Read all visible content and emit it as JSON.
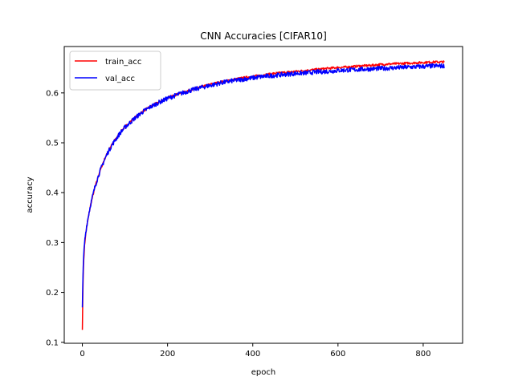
{
  "chart_data": {
    "type": "line",
    "title": "CNN Accuracies [CIFAR10]",
    "xlabel": "epoch",
    "ylabel": "accuracy",
    "xlim": [
      -42.5,
      892.5
    ],
    "ylim": [
      0.098,
      0.693
    ],
    "xticks": [
      0,
      200,
      400,
      600,
      800
    ],
    "yticks": [
      0.1,
      0.2,
      0.3,
      0.4,
      0.5,
      0.6
    ],
    "ytick_labels": [
      "0.1",
      "0.2",
      "0.3",
      "0.4",
      "0.5",
      "0.6"
    ],
    "grid": false,
    "legend": "upper-left",
    "series": [
      {
        "name": "train_acc",
        "color": "#ff0000",
        "x": [
          0,
          1,
          2,
          3,
          5,
          7,
          10,
          15,
          20,
          25,
          30,
          40,
          50,
          60,
          70,
          80,
          90,
          100,
          120,
          140,
          160,
          180,
          200,
          225,
          250,
          275,
          300,
          325,
          350,
          375,
          400,
          425,
          450,
          475,
          500,
          525,
          550,
          575,
          600,
          625,
          650,
          675,
          700,
          725,
          750,
          775,
          800,
          825,
          850
        ],
        "y": [
          0.125,
          0.19,
          0.235,
          0.262,
          0.292,
          0.31,
          0.33,
          0.355,
          0.378,
          0.395,
          0.412,
          0.44,
          0.463,
          0.482,
          0.497,
          0.51,
          0.522,
          0.532,
          0.548,
          0.562,
          0.573,
          0.582,
          0.59,
          0.598,
          0.605,
          0.611,
          0.617,
          0.622,
          0.626,
          0.63,
          0.633,
          0.636,
          0.639,
          0.641,
          0.643,
          0.645,
          0.647,
          0.649,
          0.651,
          0.652,
          0.654,
          0.655,
          0.657,
          0.658,
          0.659,
          0.66,
          0.661,
          0.662,
          0.662
        ]
      },
      {
        "name": "val_acc",
        "color": "#0000ff",
        "x": [
          0,
          1,
          2,
          3,
          5,
          7,
          10,
          15,
          20,
          25,
          30,
          40,
          50,
          60,
          70,
          80,
          90,
          100,
          120,
          140,
          160,
          180,
          200,
          225,
          250,
          275,
          300,
          325,
          350,
          375,
          400,
          425,
          450,
          475,
          500,
          525,
          550,
          575,
          600,
          625,
          650,
          675,
          700,
          725,
          750,
          775,
          800,
          825,
          850
        ],
        "y": [
          0.17,
          0.215,
          0.25,
          0.272,
          0.298,
          0.314,
          0.333,
          0.357,
          0.379,
          0.396,
          0.413,
          0.44,
          0.462,
          0.481,
          0.496,
          0.509,
          0.521,
          0.531,
          0.547,
          0.561,
          0.572,
          0.581,
          0.589,
          0.597,
          0.604,
          0.61,
          0.615,
          0.62,
          0.624,
          0.627,
          0.63,
          0.633,
          0.635,
          0.637,
          0.639,
          0.64,
          0.642,
          0.643,
          0.645,
          0.646,
          0.647,
          0.648,
          0.649,
          0.65,
          0.651,
          0.652,
          0.653,
          0.654,
          0.654
        ]
      }
    ]
  }
}
